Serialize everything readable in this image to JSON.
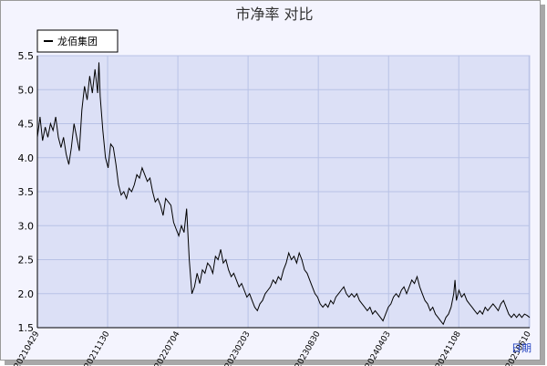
{
  "chart_data": {
    "type": "line",
    "title": "市净率  对比",
    "xlabel": "日期",
    "ylabel": "",
    "ylim": [
      1.5,
      5.5
    ],
    "y_ticks": [
      "1.5",
      "2.0",
      "2.5",
      "3.0",
      "3.5",
      "4.0",
      "4.5",
      "5.0",
      "5.5"
    ],
    "x_ticks": [
      "20210429",
      "20211130",
      "20220704",
      "20230203",
      "20230830",
      "20240403",
      "20241108",
      "20250610"
    ],
    "grid": true,
    "legend_position": "top-left",
    "series": [
      {
        "name": "龙佰集团",
        "color": "#000000",
        "points": [
          [
            0,
            4.3
          ],
          [
            2,
            4.6
          ],
          [
            4,
            4.25
          ],
          [
            6,
            4.45
          ],
          [
            8,
            4.3
          ],
          [
            10,
            4.5
          ],
          [
            12,
            4.4
          ],
          [
            14,
            4.6
          ],
          [
            16,
            4.3
          ],
          [
            18,
            4.15
          ],
          [
            20,
            4.3
          ],
          [
            22,
            4.05
          ],
          [
            24,
            3.9
          ],
          [
            26,
            4.15
          ],
          [
            28,
            4.5
          ],
          [
            30,
            4.3
          ],
          [
            32,
            4.1
          ],
          [
            34,
            4.7
          ],
          [
            36,
            5.05
          ],
          [
            38,
            4.85
          ],
          [
            40,
            5.2
          ],
          [
            42,
            4.95
          ],
          [
            44,
            5.3
          ],
          [
            46,
            4.95
          ],
          [
            47,
            5.4
          ],
          [
            48,
            4.9
          ],
          [
            50,
            4.4
          ],
          [
            52,
            4.0
          ],
          [
            54,
            3.85
          ],
          [
            56,
            4.2
          ],
          [
            58,
            4.15
          ],
          [
            60,
            3.9
          ],
          [
            62,
            3.6
          ],
          [
            64,
            3.45
          ],
          [
            66,
            3.5
          ],
          [
            68,
            3.4
          ],
          [
            70,
            3.55
          ],
          [
            72,
            3.5
          ],
          [
            74,
            3.6
          ],
          [
            76,
            3.75
          ],
          [
            78,
            3.7
          ],
          [
            80,
            3.85
          ],
          [
            82,
            3.75
          ],
          [
            84,
            3.65
          ],
          [
            86,
            3.7
          ],
          [
            88,
            3.5
          ],
          [
            90,
            3.35
          ],
          [
            92,
            3.4
          ],
          [
            94,
            3.3
          ],
          [
            96,
            3.15
          ],
          [
            98,
            3.4
          ],
          [
            100,
            3.35
          ],
          [
            102,
            3.3
          ],
          [
            104,
            3.05
          ],
          [
            106,
            2.95
          ],
          [
            108,
            2.85
          ],
          [
            110,
            3.0
          ],
          [
            112,
            2.9
          ],
          [
            114,
            3.25
          ],
          [
            116,
            2.5
          ],
          [
            118,
            2.0
          ],
          [
            120,
            2.1
          ],
          [
            122,
            2.3
          ],
          [
            124,
            2.15
          ],
          [
            126,
            2.35
          ],
          [
            128,
            2.3
          ],
          [
            130,
            2.45
          ],
          [
            132,
            2.4
          ],
          [
            134,
            2.3
          ],
          [
            136,
            2.55
          ],
          [
            138,
            2.5
          ],
          [
            140,
            2.65
          ],
          [
            142,
            2.45
          ],
          [
            144,
            2.5
          ],
          [
            146,
            2.35
          ],
          [
            148,
            2.25
          ],
          [
            150,
            2.3
          ],
          [
            152,
            2.2
          ],
          [
            154,
            2.1
          ],
          [
            156,
            2.15
          ],
          [
            158,
            2.05
          ],
          [
            160,
            1.95
          ],
          [
            162,
            2.0
          ],
          [
            164,
            1.9
          ],
          [
            166,
            1.8
          ],
          [
            168,
            1.75
          ],
          [
            170,
            1.85
          ],
          [
            172,
            1.9
          ],
          [
            174,
            2.0
          ],
          [
            176,
            2.05
          ],
          [
            178,
            2.1
          ],
          [
            180,
            2.2
          ],
          [
            182,
            2.15
          ],
          [
            184,
            2.25
          ],
          [
            186,
            2.2
          ],
          [
            188,
            2.35
          ],
          [
            190,
            2.45
          ],
          [
            192,
            2.6
          ],
          [
            194,
            2.5
          ],
          [
            196,
            2.55
          ],
          [
            198,
            2.45
          ],
          [
            200,
            2.6
          ],
          [
            202,
            2.5
          ],
          [
            204,
            2.35
          ],
          [
            206,
            2.3
          ],
          [
            208,
            2.2
          ],
          [
            210,
            2.1
          ],
          [
            212,
            2.0
          ],
          [
            214,
            1.95
          ],
          [
            216,
            1.85
          ],
          [
            218,
            1.8
          ],
          [
            220,
            1.85
          ],
          [
            222,
            1.8
          ],
          [
            224,
            1.9
          ],
          [
            226,
            1.85
          ],
          [
            228,
            1.95
          ],
          [
            230,
            2.0
          ],
          [
            232,
            2.05
          ],
          [
            234,
            2.1
          ],
          [
            236,
            2.0
          ],
          [
            238,
            1.95
          ],
          [
            240,
            2.0
          ],
          [
            242,
            1.95
          ],
          [
            244,
            2.0
          ],
          [
            246,
            1.9
          ],
          [
            248,
            1.85
          ],
          [
            250,
            1.8
          ],
          [
            252,
            1.75
          ],
          [
            254,
            1.8
          ],
          [
            256,
            1.7
          ],
          [
            258,
            1.75
          ],
          [
            260,
            1.7
          ],
          [
            262,
            1.65
          ],
          [
            264,
            1.6
          ],
          [
            266,
            1.7
          ],
          [
            268,
            1.8
          ],
          [
            270,
            1.85
          ],
          [
            272,
            1.95
          ],
          [
            274,
            2.0
          ],
          [
            276,
            1.95
          ],
          [
            278,
            2.05
          ],
          [
            280,
            2.1
          ],
          [
            282,
            2.0
          ],
          [
            284,
            2.1
          ],
          [
            286,
            2.2
          ],
          [
            288,
            2.15
          ],
          [
            290,
            2.25
          ],
          [
            292,
            2.1
          ],
          [
            294,
            2.0
          ],
          [
            296,
            1.9
          ],
          [
            298,
            1.85
          ],
          [
            300,
            1.75
          ],
          [
            302,
            1.8
          ],
          [
            304,
            1.7
          ],
          [
            306,
            1.65
          ],
          [
            308,
            1.6
          ],
          [
            310,
            1.55
          ],
          [
            312,
            1.65
          ],
          [
            314,
            1.7
          ],
          [
            316,
            1.8
          ],
          [
            318,
            2.0
          ],
          [
            319,
            2.2
          ],
          [
            320,
            1.9
          ],
          [
            322,
            2.05
          ],
          [
            324,
            1.95
          ],
          [
            326,
            2.0
          ],
          [
            328,
            1.9
          ],
          [
            330,
            1.85
          ],
          [
            332,
            1.8
          ],
          [
            334,
            1.75
          ],
          [
            336,
            1.7
          ],
          [
            338,
            1.75
          ],
          [
            340,
            1.7
          ],
          [
            342,
            1.8
          ],
          [
            344,
            1.75
          ],
          [
            346,
            1.8
          ],
          [
            348,
            1.85
          ],
          [
            350,
            1.8
          ],
          [
            352,
            1.75
          ],
          [
            354,
            1.85
          ],
          [
            356,
            1.9
          ],
          [
            358,
            1.8
          ],
          [
            360,
            1.7
          ],
          [
            362,
            1.65
          ],
          [
            364,
            1.7
          ],
          [
            366,
            1.65
          ],
          [
            368,
            1.7
          ],
          [
            370,
            1.65
          ],
          [
            372,
            1.7
          ],
          [
            374,
            1.68
          ],
          [
            376,
            1.65
          ]
        ]
      }
    ]
  }
}
